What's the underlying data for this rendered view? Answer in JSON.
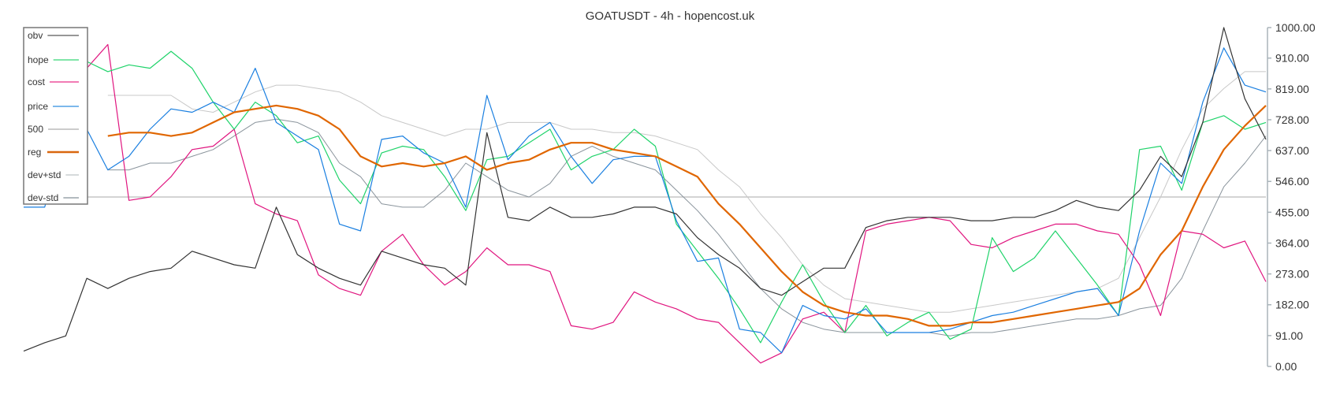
{
  "chart_data": {
    "type": "line",
    "title": "GOATUSDT - 4h - hopencost.uk",
    "ylim": [
      0,
      1000
    ],
    "yticks": [
      "0.00",
      "91.00",
      "182.00",
      "273.00",
      "364.00",
      "455.00",
      "546.00",
      "637.00",
      "728.00",
      "819.00",
      "910.00",
      "1000.00"
    ],
    "ytick_values": [
      0,
      91,
      182,
      273,
      364,
      455,
      546,
      637,
      728,
      819,
      910,
      1000
    ],
    "axis_side": "right",
    "grid": false,
    "legend_position": "top-left",
    "series": [
      {
        "name": "obv",
        "color": "#333333",
        "legend_color": "#888888",
        "width": 1.2,
        "values": [
          45,
          70,
          90,
          260,
          230,
          260,
          280,
          290,
          340,
          320,
          300,
          290,
          470,
          330,
          290,
          260,
          240,
          340,
          320,
          300,
          290,
          240,
          690,
          440,
          430,
          470,
          440,
          440,
          450,
          470,
          470,
          450,
          380,
          330,
          290,
          230,
          210,
          250,
          290,
          290,
          410,
          430,
          440,
          440,
          440,
          430,
          430,
          440,
          440,
          460,
          490,
          470,
          460,
          520,
          620,
          560,
          720,
          1000,
          790,
          670
        ]
      },
      {
        "name": "hope",
        "color": "#1fd36a",
        "legend_color": "#6ee39c",
        "width": 1.2,
        "values": [
          950,
          950,
          940,
          900,
          870,
          890,
          880,
          930,
          880,
          780,
          700,
          780,
          740,
          660,
          680,
          550,
          480,
          630,
          650,
          640,
          560,
          460,
          610,
          620,
          660,
          700,
          580,
          620,
          640,
          700,
          650,
          420,
          340,
          260,
          170,
          70,
          190,
          300,
          190,
          100,
          180,
          90,
          130,
          160,
          80,
          110,
          380,
          280,
          320,
          400,
          320,
          240,
          150,
          640,
          650,
          520,
          720,
          740,
          700,
          720
        ]
      },
      {
        "name": "cost",
        "color": "#e0157f",
        "legend_color": "#ef6aa9",
        "width": 1.2,
        "values": [
          960,
          880,
          860,
          880,
          950,
          490,
          500,
          560,
          640,
          650,
          700,
          480,
          450,
          430,
          270,
          230,
          210,
          340,
          390,
          300,
          240,
          280,
          350,
          300,
          300,
          280,
          120,
          110,
          130,
          220,
          190,
          170,
          140,
          130,
          70,
          10,
          40,
          140,
          160,
          100,
          400,
          420,
          430,
          440,
          430,
          360,
          350,
          380,
          400,
          420,
          420,
          400,
          390,
          300,
          150,
          400,
          390,
          350,
          370,
          250
        ]
      },
      {
        "name": "price",
        "color": "#1a7fe0",
        "legend_color": "#6aaeea",
        "width": 1.2,
        "values": [
          470,
          470,
          700,
          700,
          580,
          620,
          700,
          760,
          750,
          780,
          750,
          880,
          720,
          680,
          640,
          420,
          400,
          670,
          680,
          630,
          600,
          470,
          800,
          610,
          680,
          720,
          620,
          540,
          610,
          620,
          620,
          430,
          310,
          320,
          110,
          100,
          40,
          180,
          150,
          140,
          170,
          100,
          100,
          100,
          110,
          130,
          150,
          160,
          180,
          200,
          220,
          230,
          150,
          400,
          600,
          540,
          780,
          940,
          830,
          810
        ]
      },
      {
        "name": "500",
        "color": "#bbbbbb",
        "legend_color": "#c4c4c4",
        "width": 1.2,
        "constant": 500
      },
      {
        "name": "reg",
        "color": "#e06600",
        "legend_color": "#d9670f",
        "width": 2.2,
        "values": [
          null,
          null,
          null,
          null,
          680,
          690,
          690,
          680,
          690,
          720,
          750,
          760,
          770,
          760,
          740,
          700,
          620,
          590,
          600,
          590,
          600,
          620,
          580,
          600,
          610,
          640,
          660,
          660,
          640,
          630,
          620,
          590,
          560,
          480,
          420,
          350,
          280,
          220,
          180,
          160,
          150,
          150,
          140,
          120,
          120,
          130,
          130,
          140,
          150,
          160,
          170,
          180,
          190,
          230,
          330,
          400,
          530,
          640,
          710,
          770
        ]
      },
      {
        "name": "dev+std",
        "color": "#c8c8c8",
        "legend_color": "#d0d4d6",
        "width": 1,
        "values": [
          null,
          null,
          null,
          null,
          800,
          800,
          800,
          800,
          760,
          750,
          780,
          810,
          830,
          830,
          820,
          810,
          780,
          740,
          720,
          700,
          680,
          700,
          700,
          720,
          720,
          720,
          700,
          700,
          690,
          690,
          680,
          660,
          640,
          580,
          530,
          450,
          380,
          300,
          240,
          200,
          190,
          180,
          170,
          160,
          160,
          170,
          180,
          190,
          200,
          210,
          220,
          230,
          260,
          380,
          500,
          640,
          760,
          820,
          870,
          870
        ]
      },
      {
        "name": "dev-std",
        "color": "#8a949c",
        "legend_color": "#a8b0b6",
        "width": 1,
        "values": [
          null,
          null,
          null,
          null,
          580,
          580,
          600,
          600,
          620,
          640,
          680,
          720,
          730,
          720,
          690,
          600,
          560,
          480,
          470,
          470,
          520,
          600,
          560,
          520,
          500,
          540,
          620,
          650,
          620,
          600,
          580,
          520,
          460,
          390,
          310,
          230,
          170,
          130,
          110,
          100,
          100,
          100,
          100,
          100,
          90,
          100,
          100,
          110,
          120,
          130,
          140,
          140,
          150,
          170,
          180,
          260,
          400,
          530,
          600,
          680
        ]
      }
    ]
  }
}
